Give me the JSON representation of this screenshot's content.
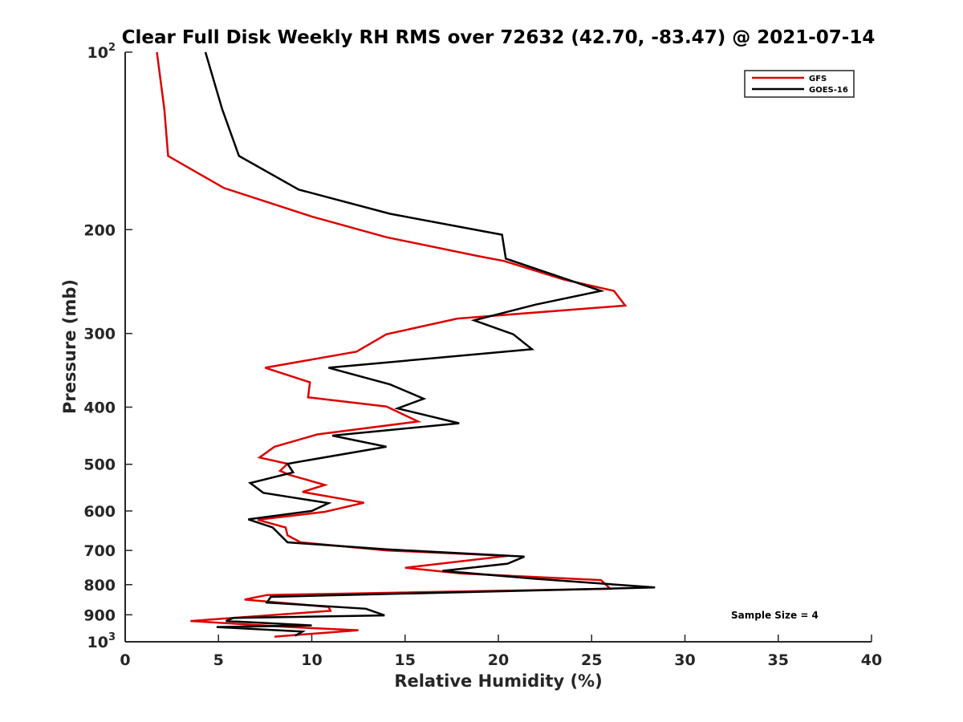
{
  "chart_data": {
    "type": "line",
    "title": "Clear Full Disk Weekly RH RMS over 72632 (42.70, -83.47) @ 2021-07-14",
    "xlabel": "Relative Humidity (%)",
    "ylabel": "Pressure (mb)",
    "xlim": [
      0,
      40
    ],
    "ylim": [
      100,
      1000
    ],
    "y_scale": "log",
    "y_reversed": true,
    "x_ticks": [
      "0",
      "5",
      "10",
      "15",
      "20",
      "25",
      "30",
      "35",
      "40"
    ],
    "y_ticks": [
      {
        "value": 100,
        "label": "10",
        "sup": "2"
      },
      {
        "value": 200,
        "label": "200"
      },
      {
        "value": 300,
        "label": "300"
      },
      {
        "value": 400,
        "label": "400"
      },
      {
        "value": 500,
        "label": "500"
      },
      {
        "value": 600,
        "label": "600"
      },
      {
        "value": 700,
        "label": "700"
      },
      {
        "value": 800,
        "label": "800"
      },
      {
        "value": 900,
        "label": "900"
      },
      {
        "value": 1000,
        "label": "10",
        "sup": "3"
      }
    ],
    "grid": false,
    "legend_position": "top-right",
    "annotation": "Sample Size = 4",
    "series": [
      {
        "name": "GFS",
        "color": "#dd0000",
        "points": [
          [
            1.7,
            100
          ],
          [
            2.1,
            125
          ],
          [
            2.3,
            150
          ],
          [
            5.3,
            170
          ],
          [
            10.0,
            190
          ],
          [
            14.0,
            206
          ],
          [
            19.0,
            222
          ],
          [
            20.3,
            226
          ],
          [
            23.5,
            243
          ],
          [
            26.2,
            254
          ],
          [
            26.8,
            269
          ],
          [
            17.8,
            283
          ],
          [
            14.0,
            301
          ],
          [
            12.4,
            322
          ],
          [
            7.5,
            343
          ],
          [
            9.9,
            363
          ],
          [
            9.8,
            385
          ],
          [
            14.0,
            399
          ],
          [
            15.7,
            423
          ],
          [
            10.3,
            445
          ],
          [
            8.0,
            467
          ],
          [
            7.2,
            487
          ],
          [
            8.7,
            499
          ],
          [
            8.3,
            513
          ],
          [
            8.8,
            521
          ],
          [
            10.7,
            542
          ],
          [
            9.5,
            557
          ],
          [
            12.8,
            581
          ],
          [
            10.7,
            602
          ],
          [
            7.1,
            621
          ],
          [
            8.6,
            640
          ],
          [
            8.7,
            660
          ],
          [
            9.4,
            678
          ],
          [
            14.0,
            700
          ],
          [
            20.5,
            715
          ],
          [
            15.0,
            749
          ],
          [
            18.0,
            766
          ],
          [
            25.5,
            786
          ],
          [
            26.0,
            813
          ],
          [
            7.6,
            833
          ],
          [
            6.4,
            848
          ],
          [
            10.9,
            873
          ],
          [
            11.0,
            886
          ],
          [
            3.5,
            922
          ],
          [
            9.0,
            945
          ],
          [
            12.5,
            956
          ],
          [
            8.0,
            980
          ]
        ]
      },
      {
        "name": "GOES-16",
        "color": "#000000",
        "points": [
          [
            4.3,
            100
          ],
          [
            5.2,
            125
          ],
          [
            6.1,
            150
          ],
          [
            9.3,
            171
          ],
          [
            14.2,
            188
          ],
          [
            20.2,
            204
          ],
          [
            20.4,
            224
          ],
          [
            25.5,
            254
          ],
          [
            22.0,
            268
          ],
          [
            18.7,
            285
          ],
          [
            20.8,
            301
          ],
          [
            21.8,
            319
          ],
          [
            10.9,
            343
          ],
          [
            14.2,
            366
          ],
          [
            16.0,
            387
          ],
          [
            14.6,
            402
          ],
          [
            17.9,
            426
          ],
          [
            11.1,
            447
          ],
          [
            14.0,
            467
          ],
          [
            8.7,
            499
          ],
          [
            9.0,
            516
          ],
          [
            6.7,
            538
          ],
          [
            7.4,
            559
          ],
          [
            10.9,
            582
          ],
          [
            10.0,
            600
          ],
          [
            6.6,
            620
          ],
          [
            7.9,
            640
          ],
          [
            8.7,
            678
          ],
          [
            14.0,
            697
          ],
          [
            21.4,
            717
          ],
          [
            20.5,
            737
          ],
          [
            17.0,
            758
          ],
          [
            22.0,
            782
          ],
          [
            28.4,
            809
          ],
          [
            7.8,
            839
          ],
          [
            7.6,
            858
          ],
          [
            12.9,
            879
          ],
          [
            13.9,
            902
          ],
          [
            5.8,
            911
          ],
          [
            5.4,
            922
          ],
          [
            10.0,
            938
          ],
          [
            4.9,
            944
          ],
          [
            9.5,
            961
          ],
          [
            9.1,
            977
          ]
        ]
      }
    ]
  },
  "legend": {
    "items": [
      {
        "label": "GFS",
        "color": "#dd0000"
      },
      {
        "label": "GOES-16",
        "color": "#000000"
      }
    ]
  }
}
